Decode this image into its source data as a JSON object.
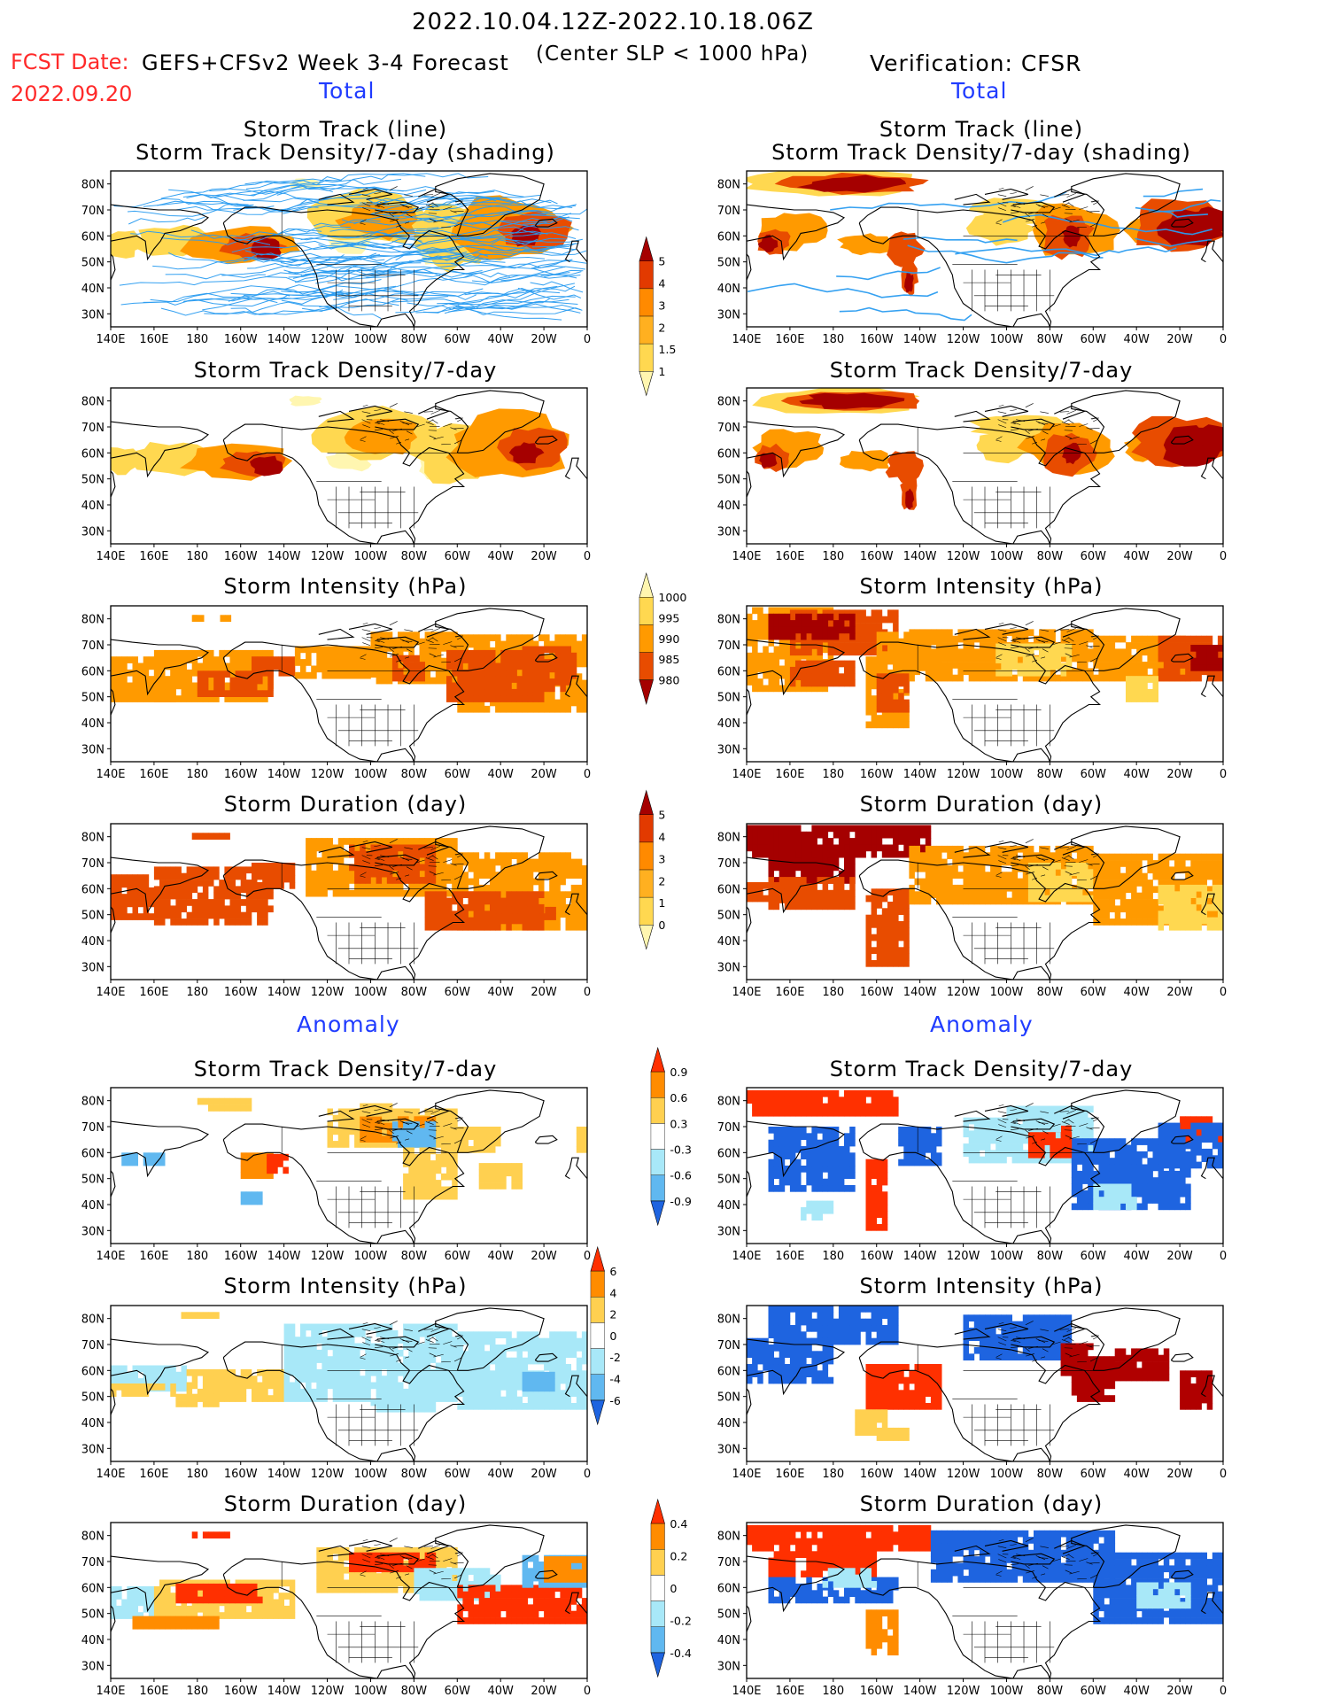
{
  "header": {
    "period": "2022.10.04.12Z-2022.10.18.06Z",
    "fcst_label": "FCST Date:",
    "fcst_date": "2022.09.20",
    "model": "GEFS+CFSv2 Week 3-4 Forecast",
    "criterion": "(Center SLP < 1000 hPa)",
    "verification": "Verification: CFSR"
  },
  "sections": {
    "total_left": "Total",
    "total_right": "Total",
    "anom_left": "Anomaly",
    "anom_right": "Anomaly"
  },
  "panel_titles": {
    "track": [
      "Storm Track (line)",
      "Storm Track Density/7-day (shading)"
    ],
    "density": "Storm Track Density/7-day",
    "intensity": "Storm Intensity (hPa)",
    "duration": "Storm Duration (day)"
  },
  "map_axes": {
    "lon_labels": [
      "140E",
      "160E",
      "180",
      "160W",
      "140W",
      "120W",
      "100W",
      "80W",
      "60W",
      "40W",
      "20W",
      "0"
    ],
    "lat_labels": [
      "80N",
      "70N",
      "60N",
      "50N",
      "40N",
      "30N"
    ]
  },
  "colorbars": {
    "density_total": {
      "labels": [
        "5",
        "4",
        "3",
        "2",
        "1.5",
        "1"
      ],
      "colors": [
        "#a50000",
        "#e23a00",
        "#ff8a00",
        "#ffb020",
        "#ffd850",
        "#fff6b0"
      ]
    },
    "intensity_total": {
      "labels": [
        "1000",
        "995",
        "990",
        "985",
        "980"
      ],
      "colors": [
        "#fff6b0",
        "#ffd850",
        "#ff9a00",
        "#e84c00",
        "#a50000"
      ]
    },
    "duration_total": {
      "labels": [
        "5",
        "4",
        "3",
        "2",
        "1",
        "0"
      ],
      "colors": [
        "#a50000",
        "#e23a00",
        "#ff8a00",
        "#ffb020",
        "#ffd850",
        "#fff6b0"
      ]
    },
    "density_anom": {
      "labels": [
        "0.9",
        "0.6",
        "0.3",
        "-0.3",
        "-0.6",
        "-0.9"
      ],
      "colors": [
        "#ff3000",
        "#ff8c00",
        "#ffd050",
        "#ffffff",
        "#a8e8f8",
        "#60b8f0",
        "#1e64e0"
      ]
    },
    "intensity_anom": {
      "labels": [
        "6",
        "4",
        "2",
        "0",
        "-2",
        "-4",
        "-6"
      ],
      "colors": [
        "#ff3000",
        "#ff8c00",
        "#ffd050",
        "#ffffff",
        "#a8e8f8",
        "#60b8f0",
        "#1e64e0"
      ]
    },
    "duration_anom": {
      "labels": [
        "0.4",
        "0.2",
        "0",
        "-0.2",
        "-0.4"
      ],
      "colors": [
        "#ff3000",
        "#ff8c00",
        "#ffd050",
        "#ffffff",
        "#a8e8f8",
        "#60b8f0",
        "#1e64e0"
      ]
    }
  },
  "fields": {
    "tot_lo": "#fff6b0",
    "tot_mid": "#ffd850",
    "tot_or": "#ff9a00",
    "tot_hi": "#e84c00",
    "tot_max": "#a50000",
    "an_pos1": "#ffd050",
    "an_pos2": "#ff8c00",
    "an_pos3": "#ff3000",
    "an_pos4": "#b00000",
    "an_neg1": "#a8e8f8",
    "an_neg2": "#60b8f0",
    "an_neg3": "#1e64e0",
    "track_line": "#2a9cf0",
    "coast": "#000000"
  }
}
